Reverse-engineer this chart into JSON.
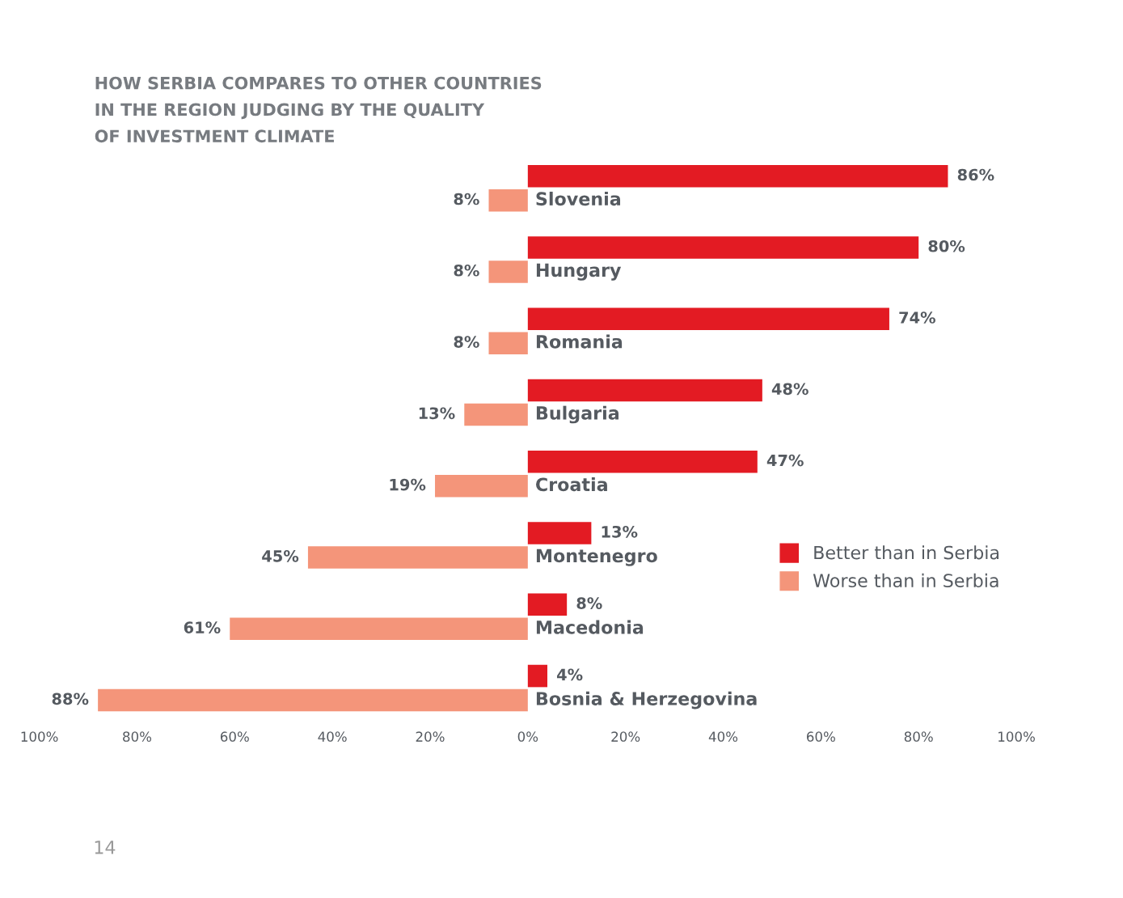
{
  "chart_data": {
    "type": "bar",
    "orientation": "horizontal",
    "title": "HOW SERBIA COMPARES TO OTHER COUNTRIES\nIN THE REGION JUDGING BY THE QUALITY\nOF INVESTMENT CLIMATE",
    "categories": [
      "Slovenia",
      "Hungary",
      "Romania",
      "Bulgaria",
      "Croatia",
      "Montenegro",
      "Macedonia",
      "Bosnia & Herzegovina"
    ],
    "series": [
      {
        "name": "Better than in Serbia",
        "color": "#e31b23",
        "values": [
          86,
          80,
          74,
          48,
          47,
          13,
          8,
          4
        ],
        "value_labels": [
          "86%",
          "80%",
          "74%",
          "48%",
          "47%",
          "13%",
          "8%",
          "4%"
        ]
      },
      {
        "name": "Worse than in Serbia",
        "color": "#f4957a",
        "values": [
          8,
          8,
          8,
          13,
          19,
          45,
          61,
          88
        ],
        "base": [
          -8,
          -8,
          -8,
          -13,
          -19,
          -45,
          -61,
          -88
        ],
        "value_labels": [
          "8%",
          "8%",
          "8%",
          "13%",
          "19%",
          "45%",
          "61%",
          "88%"
        ]
      }
    ],
    "xlim": [
      -100,
      100
    ],
    "xticks": [
      {
        "value": -100,
        "label": "100%"
      },
      {
        "value": -80,
        "label": "80%"
      },
      {
        "value": -60,
        "label": "60%"
      },
      {
        "value": -40,
        "label": "40%"
      },
      {
        "value": -20,
        "label": "20%"
      },
      {
        "value": 0,
        "label": "0%"
      },
      {
        "value": 20,
        "label": "20%"
      },
      {
        "value": 40,
        "label": "40%"
      },
      {
        "value": 60,
        "label": "60%"
      },
      {
        "value": 80,
        "label": "80%"
      },
      {
        "value": 100,
        "label": "100%"
      }
    ],
    "tick_labels": "x",
    "grid": false,
    "legend": "right",
    "annotations": [
      "14"
    ]
  }
}
